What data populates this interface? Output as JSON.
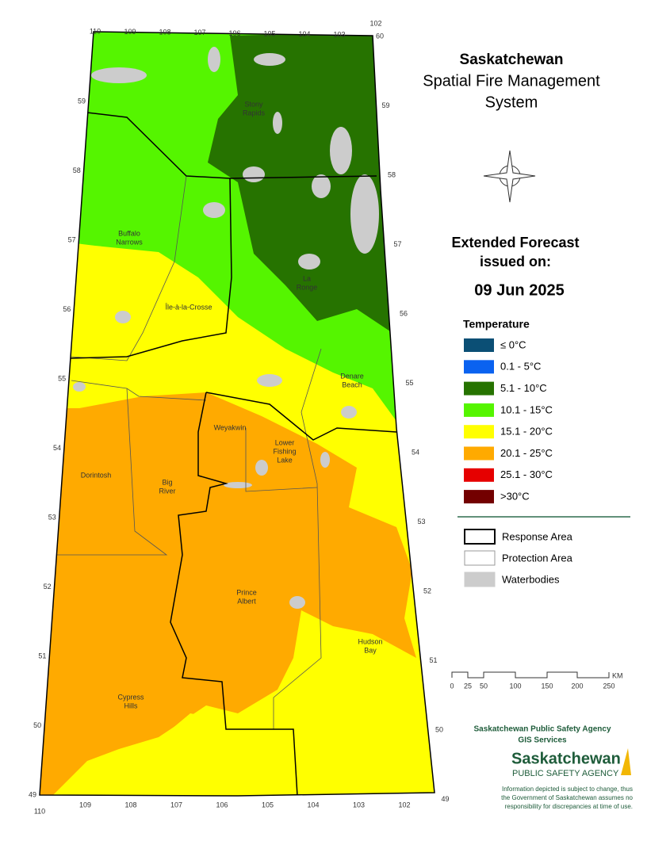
{
  "header": {
    "title": "Saskatchewan",
    "subtitle": [
      "Spatial Fire Management",
      "System"
    ]
  },
  "forecast": {
    "heading": [
      "Extended Forecast",
      "issued on:"
    ],
    "date": "09 Jun 2025"
  },
  "legend": {
    "title": "Temperature",
    "items": [
      {
        "label": "≤ 0°C",
        "color": "#0b4f75"
      },
      {
        "label": "0.1 - 5°C",
        "color": "#0a62f0"
      },
      {
        "label": "5.1 - 10°C",
        "color": "#267300"
      },
      {
        "label": "10.1 - 15°C",
        "color": "#55f500"
      },
      {
        "label": "15.1 - 20°C",
        "color": "#ffff00"
      },
      {
        "label": "20.1 - 25°C",
        "color": "#ffaa00"
      },
      {
        "label": "25.1 - 30°C",
        "color": "#e60000"
      },
      {
        "label": ">30°C",
        "color": "#730000"
      }
    ]
  },
  "boundaries": [
    {
      "label": "Response Area"
    },
    {
      "label": "Protection Area"
    },
    {
      "label": "Waterbodies"
    }
  ],
  "places": [
    {
      "lines": [
        "Stony",
        "Rapids"
      ]
    },
    {
      "lines": [
        "Buffalo",
        "Narrows"
      ]
    },
    {
      "lines": [
        "La",
        "Ronge"
      ]
    },
    {
      "lines": [
        "Île-à-la-Crosse"
      ]
    },
    {
      "lines": [
        "Denare",
        "Beach"
      ]
    },
    {
      "lines": [
        "Weyakwin"
      ]
    },
    {
      "lines": [
        "Lower",
        "Fishing",
        "Lake"
      ]
    },
    {
      "lines": [
        "Dorintosh"
      ]
    },
    {
      "lines": [
        "Big",
        "River"
      ]
    },
    {
      "lines": [
        "Prince",
        "Albert"
      ]
    },
    {
      "lines": [
        "Hudson",
        "Bay"
      ]
    },
    {
      "lines": [
        "Cypress",
        "Hills"
      ]
    }
  ],
  "graticule": {
    "top": [
      "110",
      "109",
      "108",
      "107",
      "106",
      "105",
      "104",
      "103",
      "102"
    ],
    "bottom": [
      "110",
      "109",
      "108",
      "107",
      "106",
      "105",
      "104",
      "103",
      "102"
    ],
    "left": [
      "59",
      "58",
      "57",
      "56",
      "55",
      "54",
      "53",
      "52",
      "51",
      "50",
      "49"
    ],
    "right": [
      "60",
      "59",
      "58",
      "57",
      "56",
      "55",
      "54",
      "53",
      "52",
      "51",
      "50",
      "49"
    ]
  },
  "scale": {
    "ticks": [
      "0",
      "25",
      "50",
      "100",
      "150",
      "200",
      "250"
    ],
    "unit": "KM"
  },
  "agency": {
    "name": "Saskatchewan Public Safety Agency",
    "unit": "GIS  Services",
    "logo": [
      "Saskatchewan",
      "PUBLIC SAFETY AGENCY"
    ]
  },
  "disclaimer": [
    "Information depicted is subject to change, thus",
    "the Government of Saskatchewan assumes no",
    "responsibility for discrepancies at time of use."
  ]
}
